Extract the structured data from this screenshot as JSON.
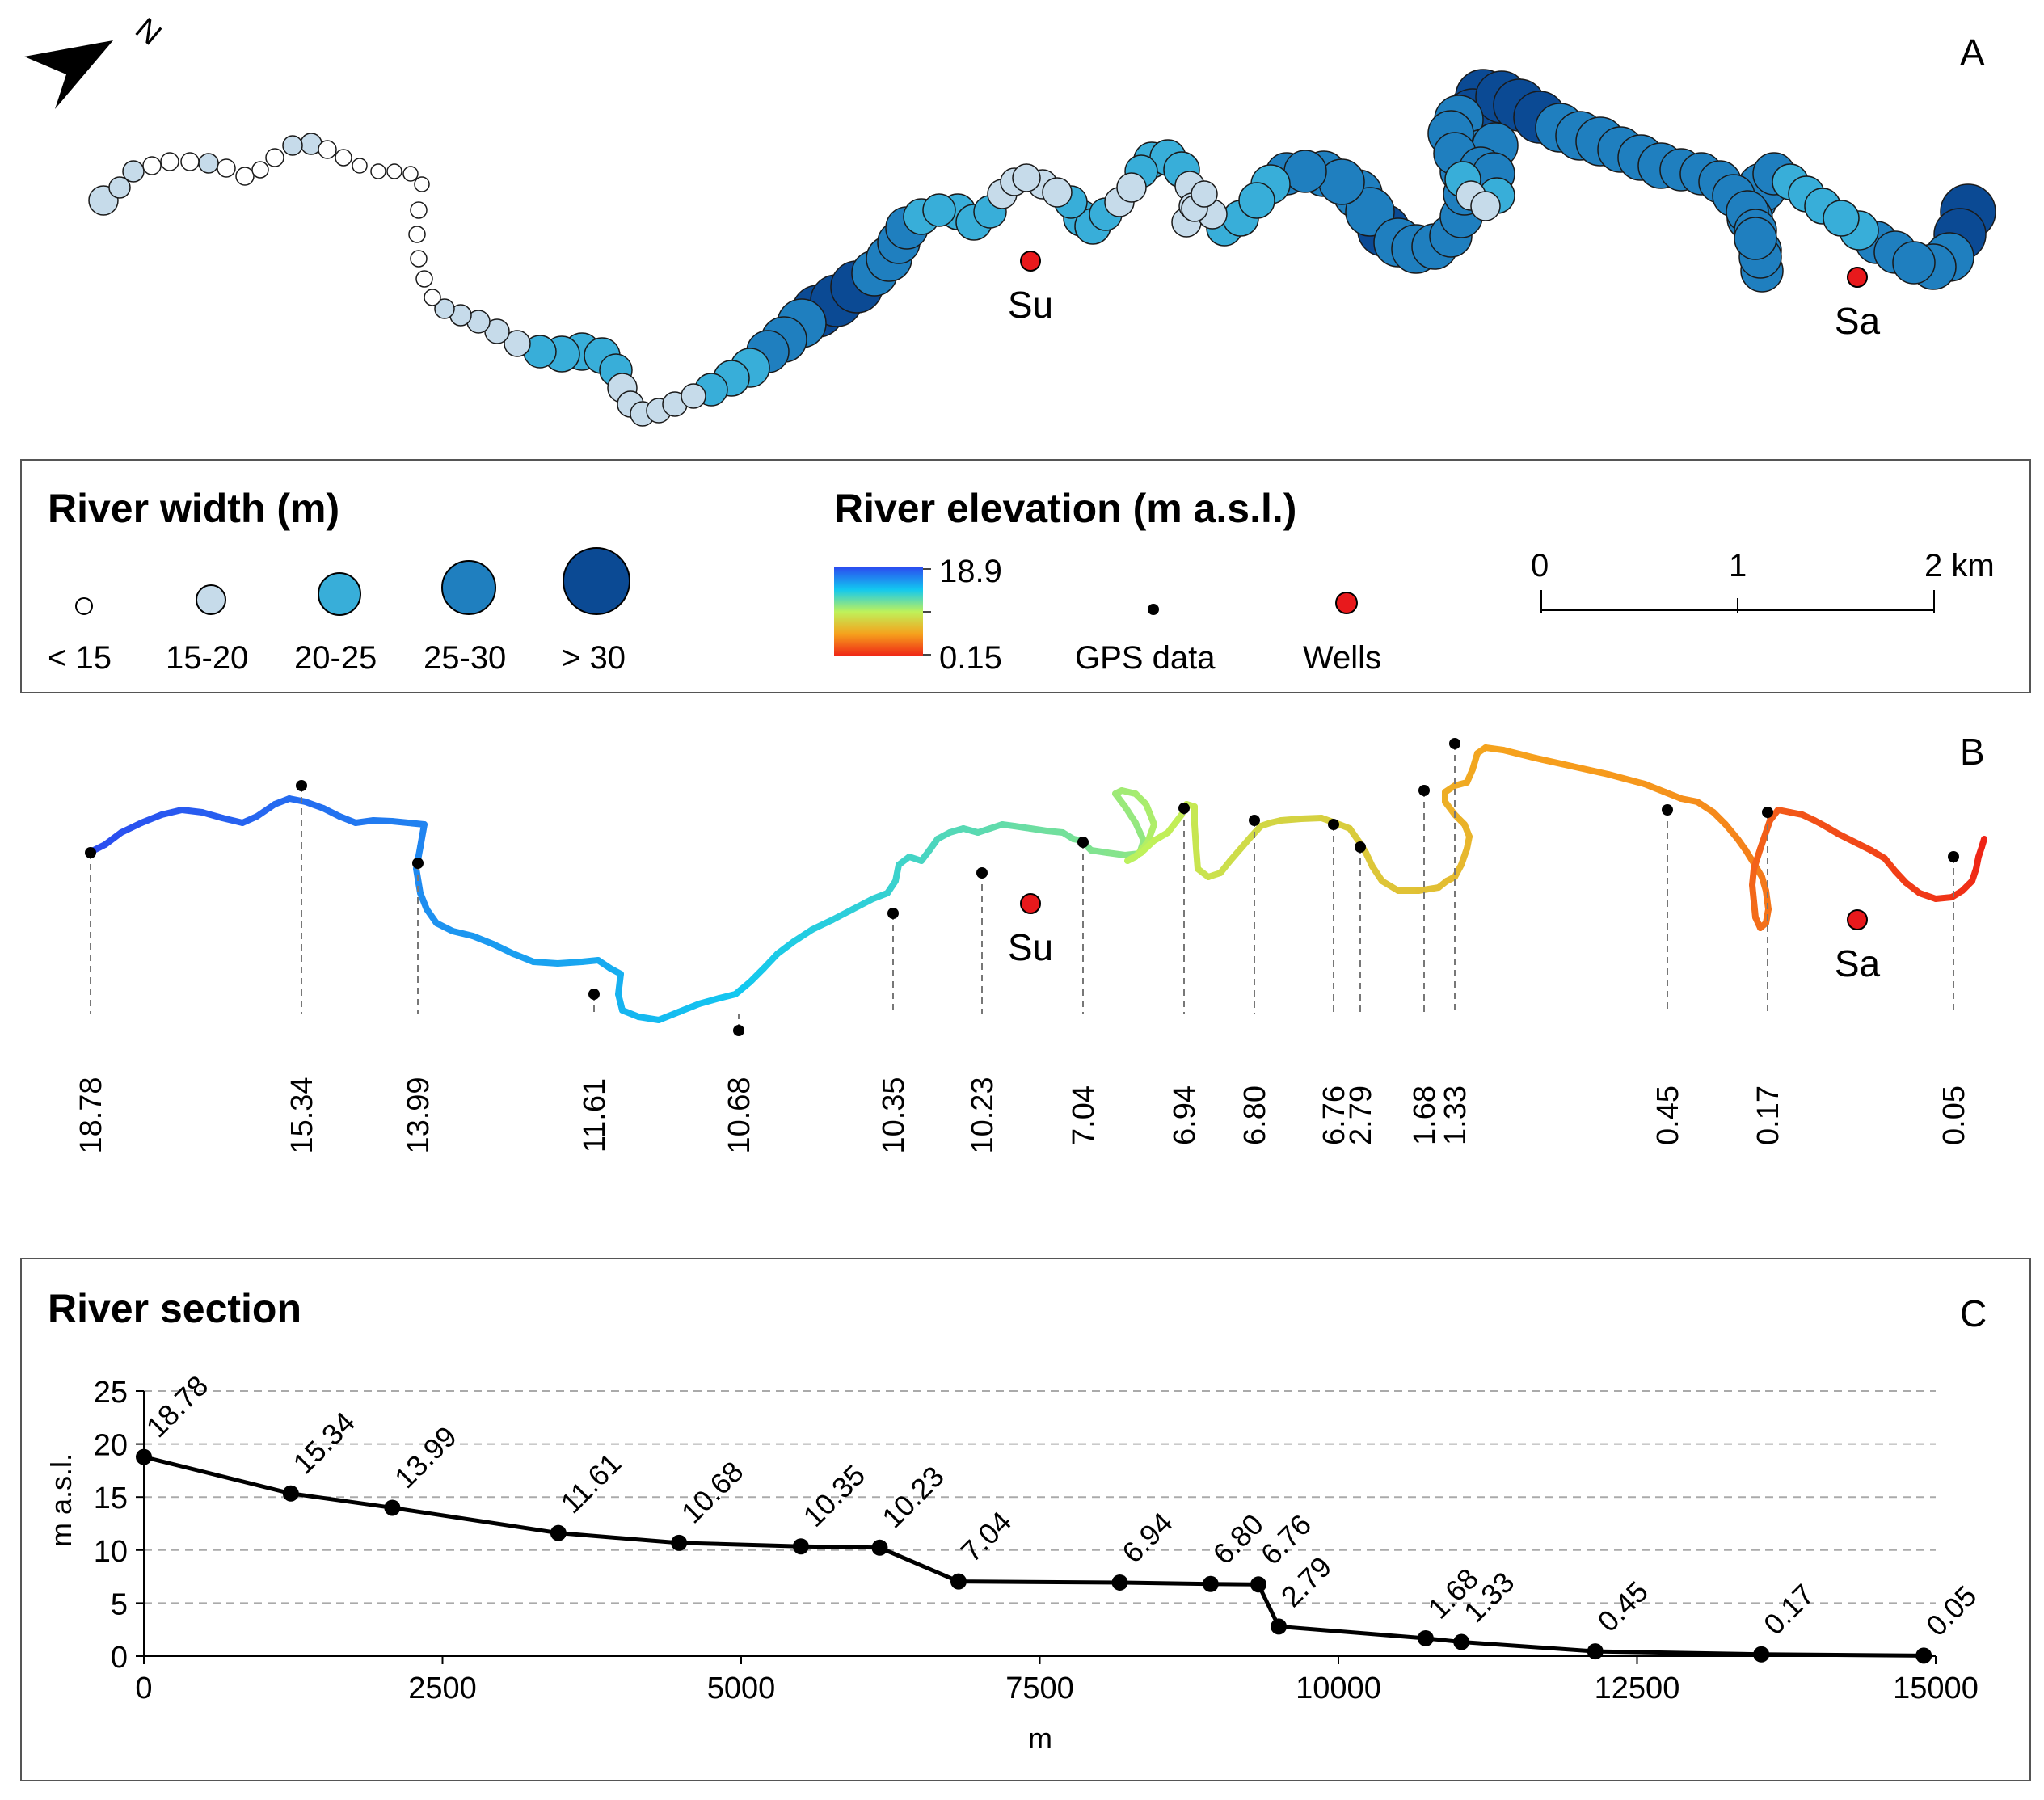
{
  "panels": {
    "a": "A",
    "b": "B",
    "c": "C"
  },
  "north_arrow": {
    "label": "N"
  },
  "wells": [
    {
      "name": "Su"
    },
    {
      "name": "Sa"
    }
  ],
  "legend": {
    "width_title": "River width (m)",
    "width_classes": [
      {
        "label": "< 15",
        "color": "#ffffff"
      },
      {
        "label": "15-20",
        "color": "#c6dbea"
      },
      {
        "label": "20-25",
        "color": "#38aed9"
      },
      {
        "label": "25-30",
        "color": "#1f7fbf"
      },
      {
        "label": "> 30",
        "color": "#0b4a94"
      }
    ],
    "elevation_title": "River elevation (m a.s.l.)",
    "elevation_max": "18.9",
    "elevation_min": "0.15",
    "gps_label": "GPS data",
    "wells_label": "Wells",
    "scale": {
      "labels": [
        "0",
        "1",
        "2 km"
      ]
    }
  },
  "gps_points": [
    "18.78",
    "15.34",
    "13.99",
    "11.61",
    "10.68",
    "10.35",
    "10.23",
    "7.04",
    "6.94",
    "6.80",
    "6.76",
    "2.79",
    "1.68",
    "1.33",
    "0.45",
    "0.17",
    "0.05"
  ],
  "chart_data": {
    "type": "line",
    "title": "River section",
    "xlabel": "m",
    "ylabel": "m a.s.l.",
    "xlim": [
      0,
      15000
    ],
    "ylim": [
      0,
      25
    ],
    "xticks": [
      "0",
      "2500",
      "5000",
      "7500",
      "10000",
      "12500",
      "15000"
    ],
    "yticks": [
      "0",
      "5",
      "10",
      "15",
      "20",
      "25"
    ],
    "grid": true,
    "series": [
      {
        "name": "River section",
        "x": [
          0,
          1230,
          2080,
          3470,
          4480,
          5500,
          6160,
          6820,
          8170,
          8930,
          9330,
          9500,
          10730,
          11030,
          12150,
          13540,
          14900
        ],
        "y": [
          18.78,
          15.34,
          13.99,
          11.61,
          10.68,
          10.35,
          10.23,
          7.04,
          6.94,
          6.8,
          6.76,
          2.79,
          1.68,
          1.33,
          0.45,
          0.17,
          0.05
        ],
        "labels": [
          "18.78",
          "15.34",
          "13.99",
          "11.61",
          "10.68",
          "10.35",
          "10.23",
          "7.04",
          "6.94",
          "6.80",
          "6.76",
          "2.79",
          "1.68",
          "1.33",
          "0.45",
          "0.17",
          "0.05"
        ]
      }
    ]
  }
}
